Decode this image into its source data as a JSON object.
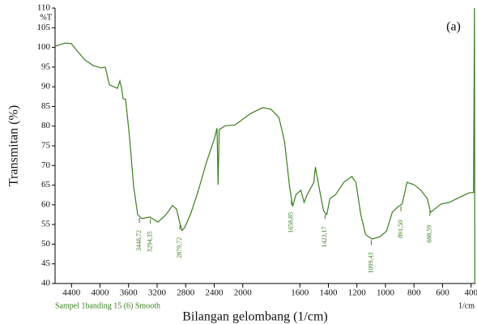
{
  "chart_data": {
    "type": "line",
    "title": "(a)",
    "subtitle": "Sampel 1banding 15 (6) Smooth",
    "x_label": "Bilangan gelombang (1/cm)",
    "y_label": "Transmitan (%)",
    "y_unit": "%T",
    "x_unit": "1/cm",
    "color": "#3b7d1f",
    "xlim": [
      4630,
      370
    ],
    "x_break": {
      "at": 2000,
      "expand": 2
    },
    "ylim": [
      40,
      110
    ],
    "xticks": [
      4400,
      4000,
      3600,
      3200,
      2800,
      2400,
      2000,
      1600,
      1400,
      1200,
      1000,
      800,
      600,
      400
    ],
    "yticks": [
      40,
      45,
      50,
      55,
      60,
      65,
      70,
      75,
      80,
      85,
      90,
      95,
      100,
      105,
      110
    ],
    "x": [
      4630,
      4494,
      4403,
      4324,
      4210,
      4096,
      3983,
      3926,
      3869,
      3756,
      3722,
      3699,
      3677,
      3642,
      3586,
      3529,
      3472,
      3415,
      3302,
      3188,
      3075,
      2984,
      2927,
      2882,
      2850,
      2814,
      2734,
      2621,
      2507,
      2394,
      2360,
      2345,
      2330,
      2246,
      2110,
      1945,
      1860,
      1803,
      1746,
      1707,
      1672,
      1650,
      1627,
      1593,
      1570,
      1548,
      1502,
      1491,
      1468,
      1434,
      1411,
      1389,
      1349,
      1292,
      1236,
      1207,
      1173,
      1139,
      1094,
      1037,
      992,
      952,
      913,
      883,
      849,
      798,
      752,
      707,
      684,
      656,
      610,
      553,
      497,
      440,
      411,
      383,
      376,
      374
    ],
    "values": [
      100.3,
      101.1,
      101.0,
      99.2,
      96.8,
      95.4,
      94.8,
      95.0,
      90.5,
      89.6,
      91.5,
      89.8,
      87.0,
      86.8,
      77.1,
      64.7,
      57.5,
      56.5,
      56.9,
      55.6,
      57.5,
      59.8,
      58.9,
      55.4,
      53.5,
      54.2,
      57.5,
      63.7,
      70.9,
      77.0,
      79.5,
      65.1,
      79.1,
      80.1,
      80.3,
      83.2,
      84.7,
      84.3,
      82.2,
      76.0,
      64.7,
      59.6,
      62.6,
      63.7,
      60.6,
      62.6,
      65.7,
      69.6,
      65.0,
      58.5,
      57.5,
      61.6,
      62.6,
      65.7,
      67.2,
      65.7,
      57.5,
      52.4,
      51.3,
      51.9,
      53.4,
      58.1,
      59.5,
      60.2,
      65.7,
      65.1,
      63.7,
      61.6,
      58.1,
      58.9,
      60.2,
      60.6,
      61.6,
      62.6,
      63.1,
      63.1,
      110,
      40
    ],
    "annotations": [
      {
        "label": "3448,72",
        "x": 3448.72
      },
      {
        "label": "3294,35",
        "x": 3294.35
      },
      {
        "label": "2879,72",
        "x": 2879.72
      },
      {
        "label": "1658,85",
        "x": 1658.85
      },
      {
        "label": "1423,17",
        "x": 1423.17
      },
      {
        "label": "1099,43",
        "x": 1099.43
      },
      {
        "label": "891,50",
        "x": 891.5
      },
      {
        "label": "688,59",
        "x": 688.59
      }
    ]
  }
}
